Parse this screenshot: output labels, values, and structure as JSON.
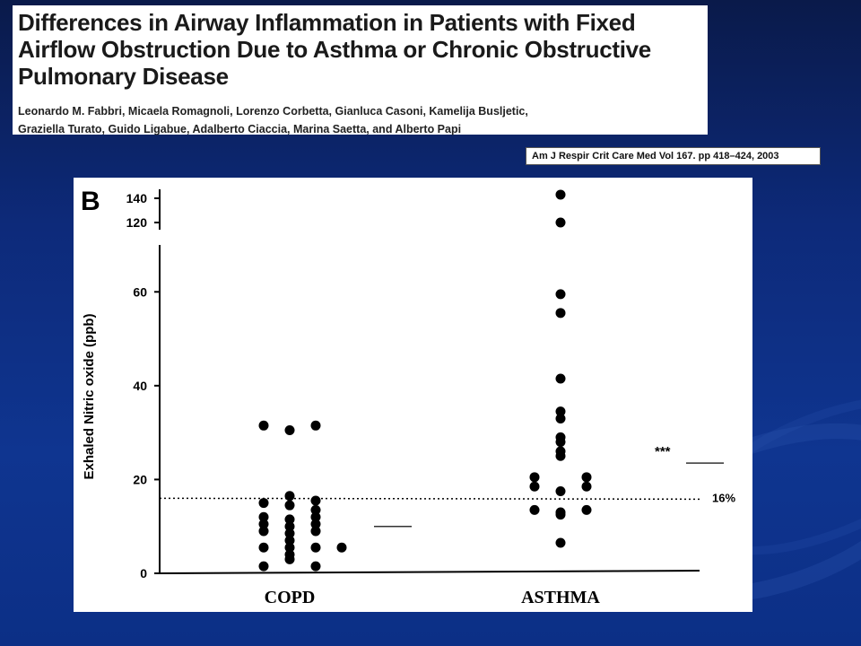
{
  "paper": {
    "title": "Differences in Airway Inflammation in Patients with Fixed Airflow Obstruction Due to Asthma or Chronic Obstructive Pulmonary Disease",
    "authors_line1": "Leonardo M. Fabbri, Micaela Romagnoli, Lorenzo Corbetta, Gianluca Casoni, Kamelija Busljetic,",
    "authors_line2": "Graziella Turato, Guido Ligabue, Adalberto Ciaccia, Marina Saetta, and Alberto Papi"
  },
  "citation": "Am J Respir Crit Care Med   Vol 167. pp 418–424, 2003",
  "chart_data": {
    "type": "scatter",
    "panel_label": "B",
    "ylabel": "Exhaled Nitric oxide (ppb)",
    "xlabel": "",
    "categories": [
      "COPD",
      "ASTHMA"
    ],
    "yticks": [
      "0",
      "20",
      "40",
      "60",
      "120",
      "140"
    ],
    "ylim": [
      0,
      140
    ],
    "axis_break": [
      70,
      115
    ],
    "reference_line": {
      "value": 16,
      "label": "16%",
      "style": "dotted"
    },
    "series": [
      {
        "points": [
          {
            "x": "COPD",
            "offset": -1,
            "y": 31.5
          },
          {
            "x": "COPD",
            "offset": 0,
            "y": 30.5
          },
          {
            "x": "COPD",
            "offset": 1,
            "y": 31.5
          },
          {
            "x": "COPD",
            "offset": -1,
            "y": 15
          },
          {
            "x": "COPD",
            "offset": -1,
            "y": 12
          },
          {
            "x": "COPD",
            "offset": -1,
            "y": 10.5
          },
          {
            "x": "COPD",
            "offset": -1,
            "y": 9
          },
          {
            "x": "COPD",
            "offset": -1,
            "y": 5.5
          },
          {
            "x": "COPD",
            "offset": -1,
            "y": 1.5
          },
          {
            "x": "COPD",
            "offset": 0,
            "y": 16.5
          },
          {
            "x": "COPD",
            "offset": 0,
            "y": 14.5
          },
          {
            "x": "COPD",
            "offset": 0,
            "y": 11.5
          },
          {
            "x": "COPD",
            "offset": 0,
            "y": 10
          },
          {
            "x": "COPD",
            "offset": 0,
            "y": 8.5
          },
          {
            "x": "COPD",
            "offset": 0,
            "y": 7
          },
          {
            "x": "COPD",
            "offset": 0,
            "y": 5.5
          },
          {
            "x": "COPD",
            "offset": 0,
            "y": 4
          },
          {
            "x": "COPD",
            "offset": 0,
            "y": 3
          },
          {
            "x": "COPD",
            "offset": 1,
            "y": 15.5
          },
          {
            "x": "COPD",
            "offset": 1,
            "y": 13.5
          },
          {
            "x": "COPD",
            "offset": 1,
            "y": 12
          },
          {
            "x": "COPD",
            "offset": 1,
            "y": 10.5
          },
          {
            "x": "COPD",
            "offset": 1,
            "y": 9
          },
          {
            "x": "COPD",
            "offset": 1,
            "y": 5.5
          },
          {
            "x": "COPD",
            "offset": 1,
            "y": 1.5
          },
          {
            "x": "COPD",
            "offset": 2,
            "y": 5.5
          },
          {
            "x": "ASTHMA",
            "offset": 0,
            "y": 143
          },
          {
            "x": "ASTHMA",
            "offset": 0,
            "y": 120
          },
          {
            "x": "ASTHMA",
            "offset": 0,
            "y": 59.5
          },
          {
            "x": "ASTHMA",
            "offset": 0,
            "y": 55.5
          },
          {
            "x": "ASTHMA",
            "offset": 0,
            "y": 41.5
          },
          {
            "x": "ASTHMA",
            "offset": 0,
            "y": 34.5
          },
          {
            "x": "ASTHMA",
            "offset": 0,
            "y": 33
          },
          {
            "x": "ASTHMA",
            "offset": 0,
            "y": 29
          },
          {
            "x": "ASTHMA",
            "offset": 0,
            "y": 28
          },
          {
            "x": "ASTHMA",
            "offset": 0,
            "y": 26
          },
          {
            "x": "ASTHMA",
            "offset": 0,
            "y": 25
          },
          {
            "x": "ASTHMA",
            "offset": -1,
            "y": 20.5
          },
          {
            "x": "ASTHMA",
            "offset": 1,
            "y": 20.5
          },
          {
            "x": "ASTHMA",
            "offset": -1,
            "y": 18.5
          },
          {
            "x": "ASTHMA",
            "offset": 1,
            "y": 18.5
          },
          {
            "x": "ASTHMA",
            "offset": 0,
            "y": 17.5
          },
          {
            "x": "ASTHMA",
            "offset": -1,
            "y": 13.5
          },
          {
            "x": "ASTHMA",
            "offset": 1,
            "y": 13.5
          },
          {
            "x": "ASTHMA",
            "offset": 0,
            "y": 13
          },
          {
            "x": "ASTHMA",
            "offset": 0,
            "y": 12.5
          },
          {
            "x": "ASTHMA",
            "offset": 0,
            "y": 6.5
          }
        ]
      }
    ],
    "medians": [
      {
        "category": "COPD",
        "value": 10
      },
      {
        "category": "ASTHMA",
        "value": 23.5
      }
    ],
    "annotations": [
      {
        "text": "***",
        "category": "ASTHMA",
        "value": 26
      }
    ],
    "grid": false,
    "colors": {
      "points": "#000000",
      "axis": "#000000",
      "background": "#ffffff"
    }
  }
}
